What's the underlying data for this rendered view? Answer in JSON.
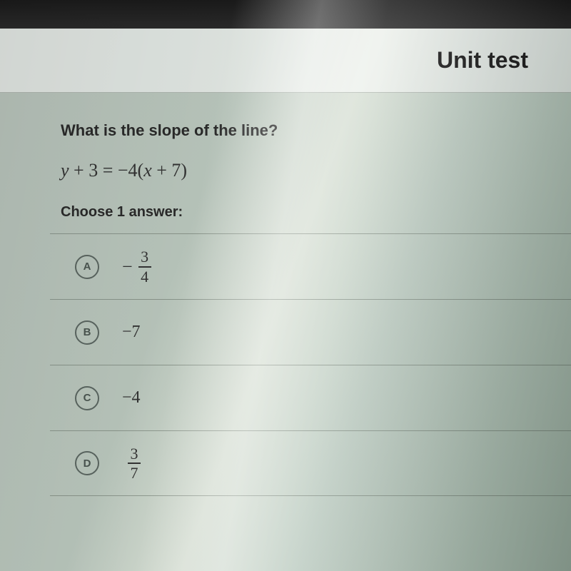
{
  "header": {
    "title": "Unit test"
  },
  "question": {
    "prompt": "What is the slope of the line?",
    "equation_lhs": "y + 3",
    "equation_rhs": "−4(x + 7)",
    "instruction": "Choose 1 answer:"
  },
  "answers": [
    {
      "letter": "A",
      "neg": "−",
      "num": "3",
      "den": "4",
      "type": "frac"
    },
    {
      "letter": "B",
      "text": "−7",
      "type": "plain"
    },
    {
      "letter": "C",
      "text": "−4",
      "type": "plain"
    },
    {
      "letter": "D",
      "neg": "",
      "num": "3",
      "den": "7",
      "type": "frac"
    }
  ],
  "colors": {
    "text": "#2a2a2a",
    "border": "rgba(90,100,90,0.5)",
    "radio_border": "#5a6560"
  }
}
